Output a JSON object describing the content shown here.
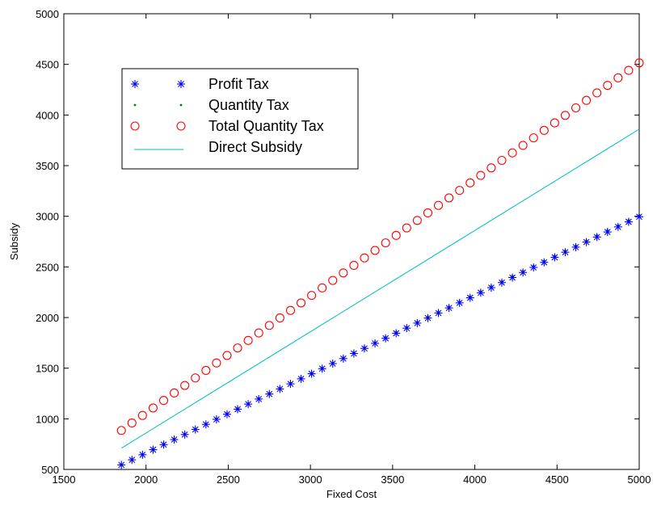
{
  "chart_data": {
    "type": "scatter",
    "xlabel": "Fixed Cost",
    "ylabel": "Subsidy",
    "xlim": [
      1500,
      5000
    ],
    "ylim": [
      500,
      5000
    ],
    "xticks": [
      1500,
      2000,
      2500,
      3000,
      3500,
      4000,
      4500,
      5000
    ],
    "yticks": [
      500,
      1000,
      1500,
      2000,
      2500,
      3000,
      3500,
      4000,
      4500,
      5000
    ],
    "grid": false,
    "legend_position": "top-left",
    "series": [
      {
        "name": "Profit Tax",
        "marker": "asterisk",
        "color": "#0000ff",
        "x_start": 1850,
        "x_end": 5000,
        "points": 50,
        "y_start": 545,
        "y_end": 2995
      },
      {
        "name": "Quantity Tax",
        "marker": "dot",
        "color": "#008000",
        "x_start": 1850,
        "x_end": 5000,
        "points": 50,
        "y_start": 550,
        "y_end": 3010
      },
      {
        "name": "Total Quantity Tax",
        "marker": "circle",
        "color": "#ff0000",
        "x_start": 1850,
        "x_end": 5000,
        "points": 50,
        "y_start": 885,
        "y_end": 4515
      },
      {
        "name": "Direct Subsidy",
        "marker": "line",
        "color": "#00bfbf",
        "x": [
          1850,
          5000
        ],
        "y": [
          710,
          3860
        ]
      }
    ]
  }
}
